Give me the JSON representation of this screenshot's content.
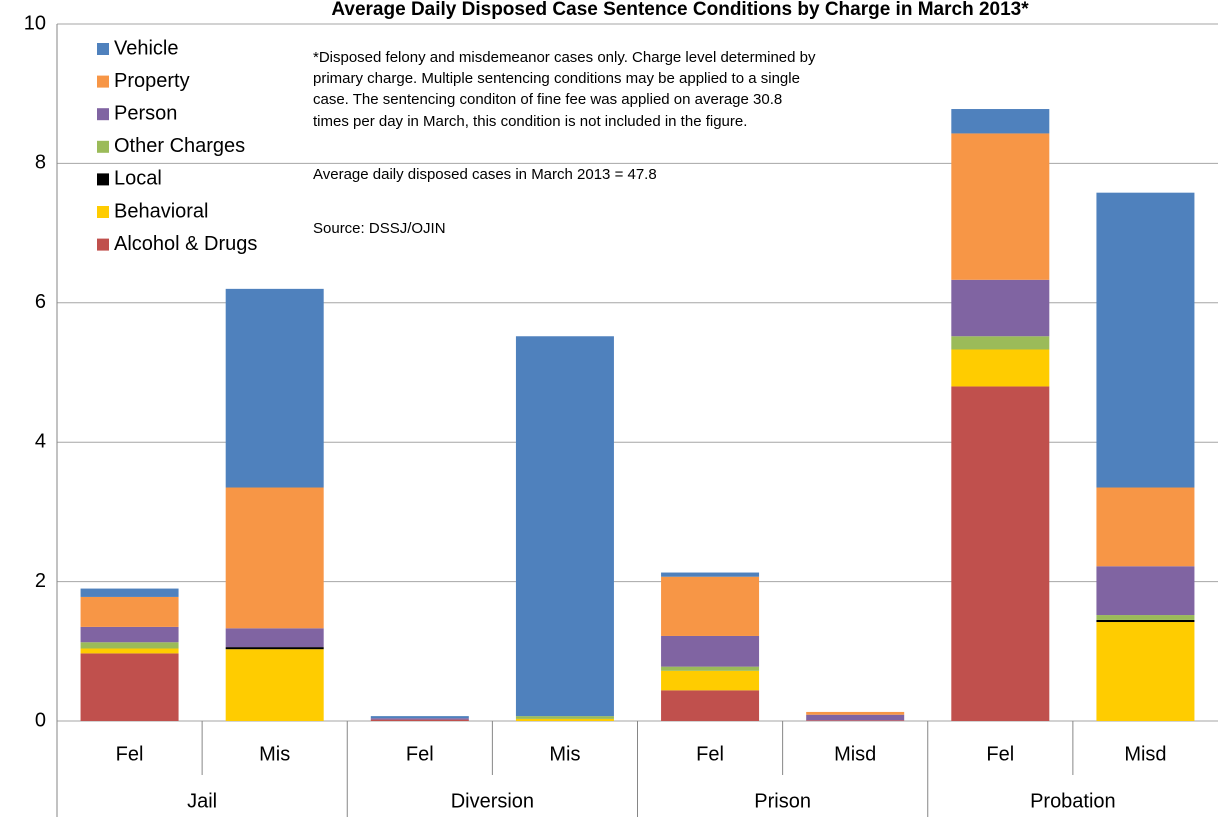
{
  "chart_data": {
    "type": "stacked_bar",
    "title": "Average Daily Disposed Case Sentence Conditions by Charge in March 2013*",
    "categories": [
      "Fel",
      "Mis",
      "Fel",
      "Mis",
      "Fel",
      "Misd",
      "Fel",
      "Misd"
    ],
    "groups": [
      "Jail",
      "Diversion",
      "Prison",
      "Probation"
    ],
    "series": [
      {
        "name": "Alcohol & Drugs",
        "color": "#c0504d",
        "values": [
          0.97,
          0,
          0.02,
          0,
          0.44,
          0.01,
          4.8,
          0
        ]
      },
      {
        "name": "Behavioral",
        "color": "#ffcc00",
        "values": [
          0.07,
          1.03,
          0,
          0.03,
          0.28,
          0,
          0.53,
          1.42
        ]
      },
      {
        "name": "Local",
        "color": "#000000",
        "values": [
          0,
          0.03,
          0,
          0,
          0,
          0,
          0,
          0.03
        ]
      },
      {
        "name": "Other Charges",
        "color": "#9bbb59",
        "values": [
          0.09,
          0,
          0,
          0.04,
          0.06,
          0,
          0.19,
          0.07
        ]
      },
      {
        "name": "Person",
        "color": "#8064a2",
        "values": [
          0.22,
          0.27,
          0.02,
          0,
          0.44,
          0.08,
          0.81,
          0.7
        ]
      },
      {
        "name": "Property",
        "color": "#f79646",
        "values": [
          0.43,
          2.02,
          0,
          0,
          0.85,
          0.04,
          2.1,
          1.13
        ]
      },
      {
        "name": "Vehicle",
        "color": "#4f81bd",
        "values": [
          0.12,
          2.85,
          0.03,
          5.45,
          0.06,
          0,
          0.35,
          4.23
        ]
      }
    ],
    "ylim": [
      0,
      10
    ],
    "yticks": [
      0,
      2,
      4,
      6,
      8,
      10
    ],
    "grid": true,
    "annotations": [
      "*Disposed felony and misdemeanor cases only.  Charge level determined by",
      "primary charge.  Multiple sentencing conditions may be applied to a single",
      "case.  The sentencing conditon of fine fee was applied  on average 30.8",
      "times per day in March, this condition is not included in the figure.",
      "Average daily disposed cases in March 2013 = 47.8",
      "Source: DSSJ/OJIN"
    ]
  }
}
